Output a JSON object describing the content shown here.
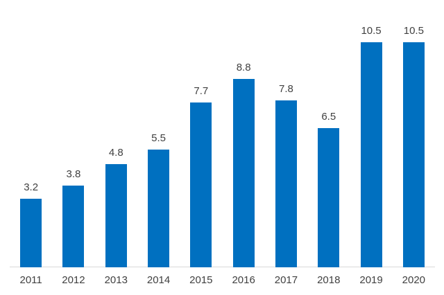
{
  "chart_data": {
    "type": "bar",
    "categories": [
      "2011",
      "2012",
      "2013",
      "2014",
      "2015",
      "2016",
      "2017",
      "2018",
      "2019",
      "2020"
    ],
    "values": [
      3.2,
      3.8,
      4.8,
      5.5,
      7.7,
      8.8,
      7.8,
      6.5,
      10.5,
      10.5
    ],
    "data_labels": [
      "3.2",
      "3.8",
      "4.8",
      "5.5",
      "7.7",
      "8.8",
      "7.8",
      "6.5",
      "10.5",
      "10.5"
    ],
    "title": "",
    "xlabel": "",
    "ylabel": "",
    "ylim": [
      0,
      10.5
    ],
    "grid": false,
    "legend": false,
    "y_axis_visible": false,
    "bar_color": "#0070c0",
    "label_color": "#404040",
    "axis_line_color": "#d9d9d9",
    "background_color": "#ffffff"
  }
}
